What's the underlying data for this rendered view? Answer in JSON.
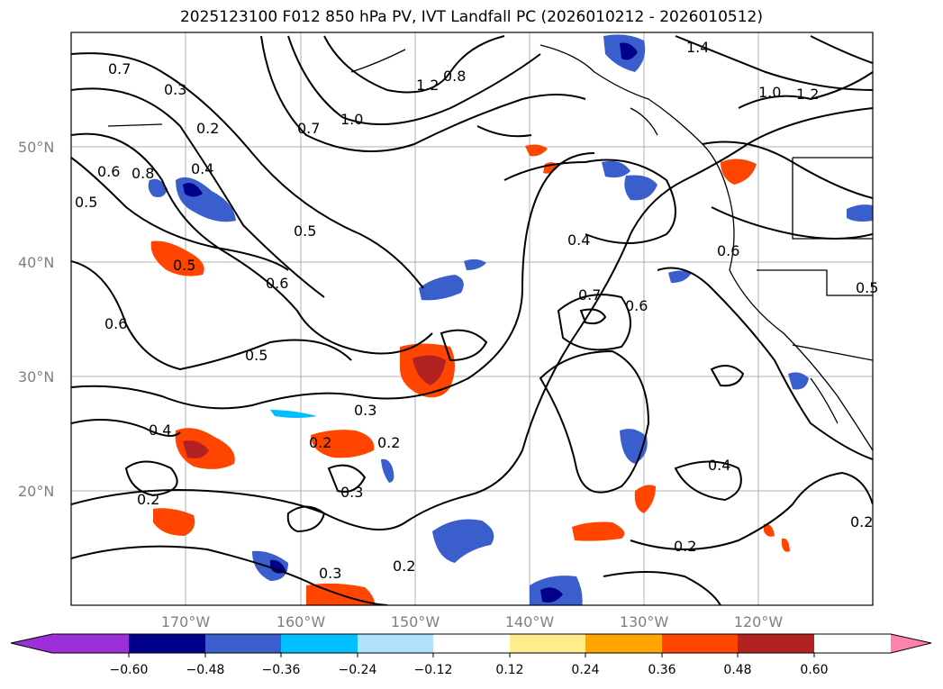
{
  "title": "2025123100 F012 850 hPa PV, IVT Landfall PC (2026010212 - 2026010512)",
  "map": {
    "lat_labels": [
      "50°N",
      "40°N",
      "30°N",
      "20°N"
    ],
    "lon_labels": [
      "170°W",
      "160°W",
      "150°W",
      "140°W",
      "130°W",
      "120°W"
    ],
    "contour_labels": [
      "0.7",
      "0.3",
      "0.2",
      "0.4",
      "0.8",
      "0.6",
      "0.5",
      "0.5",
      "0.6",
      "0.6",
      "0.5",
      "0.4",
      "0.3",
      "0.2",
      "0.2",
      "0.3",
      "0.2",
      "0.2",
      "0.4",
      "0.7",
      "0.6",
      "0.8",
      "1.4",
      "1.2",
      "1.0",
      "0.7",
      "1.0",
      "1.2",
      "0.6",
      "0.5",
      "0.4",
      "0.2",
      "0.2",
      "0.3",
      "0.5"
    ]
  },
  "colorbar": {
    "ticks": [
      "−0.60",
      "−0.48",
      "−0.36",
      "−0.24",
      "−0.12",
      "0.12",
      "0.24",
      "0.36",
      "0.48",
      "0.60"
    ],
    "colors": {
      "under": "#9b30d9",
      "c1": "#00008b",
      "c2": "#3a5fcd",
      "c3": "#00bfff",
      "c4": "#b0e2ff",
      "c5": "#ffffff",
      "c6": "#ffec8b",
      "c7": "#ffa500",
      "c8": "#ff4500",
      "c9": "#b22222",
      "over": "#ff82ab"
    }
  }
}
